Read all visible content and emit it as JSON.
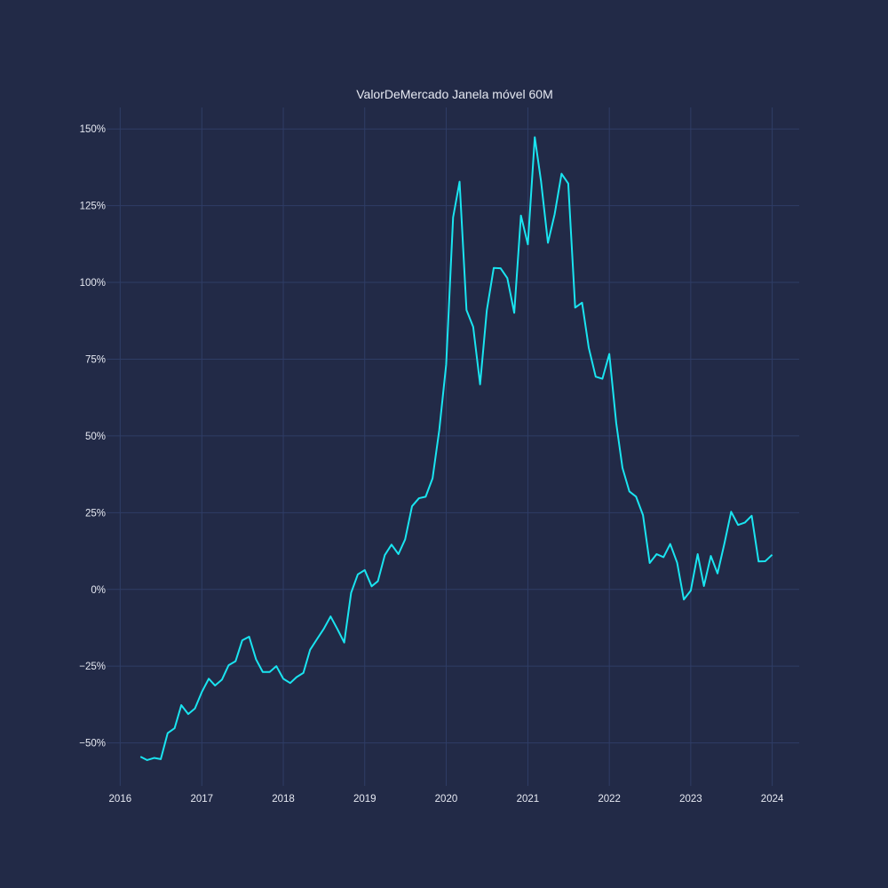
{
  "chart_data": {
    "type": "line",
    "title": "ValorDeMercado Janela móvel 60M",
    "xlabel": "",
    "ylabel": "",
    "x_ticks": [
      "2016",
      "2017",
      "2018",
      "2019",
      "2020",
      "2021",
      "2022",
      "2023",
      "2024"
    ],
    "y_ticks": [
      {
        "value": -50,
        "label": "−50%"
      },
      {
        "value": -25,
        "label": "−25%"
      },
      {
        "value": 0,
        "label": "0%"
      },
      {
        "value": 25,
        "label": "25%"
      },
      {
        "value": 50,
        "label": "50%"
      },
      {
        "value": 75,
        "label": "75%"
      },
      {
        "value": 100,
        "label": "100%"
      },
      {
        "value": 125,
        "label": "125%"
      },
      {
        "value": 150,
        "label": "150%"
      }
    ],
    "xlim": [
      "2015-11-01",
      "2024-05-01"
    ],
    "ylim": [
      -64,
      157
    ],
    "grid": true,
    "colors": {
      "background": "#222a47",
      "line": "#1ae4f0",
      "grid": "#2f3d66",
      "text": "#e6e9f2"
    },
    "series": [
      {
        "x": [
          "2016-04",
          "2016-05",
          "2016-06",
          "2016-07",
          "2016-08",
          "2016-09",
          "2016-10",
          "2016-11",
          "2016-12",
          "2017-01",
          "2017-02",
          "2017-03",
          "2017-04",
          "2017-05",
          "2017-06",
          "2017-07",
          "2017-08",
          "2017-09",
          "2017-10",
          "2017-11",
          "2017-12",
          "2018-01",
          "2018-02",
          "2018-03",
          "2018-04",
          "2018-05",
          "2018-06",
          "2018-07",
          "2018-08",
          "2018-09",
          "2018-10",
          "2018-11",
          "2018-12",
          "2019-01",
          "2019-02",
          "2019-03",
          "2019-04",
          "2019-05",
          "2019-06",
          "2019-07",
          "2019-08",
          "2019-09",
          "2019-10",
          "2019-11",
          "2019-12",
          "2020-01",
          "2020-02",
          "2020-03",
          "2020-04",
          "2020-05",
          "2020-06",
          "2020-07",
          "2020-08",
          "2020-09",
          "2020-10",
          "2020-11",
          "2020-12",
          "2021-01",
          "2021-02",
          "2021-03",
          "2021-04",
          "2021-05",
          "2021-06",
          "2021-07",
          "2021-08",
          "2021-09",
          "2021-10",
          "2021-11",
          "2021-12",
          "2022-01",
          "2022-02",
          "2022-03",
          "2022-04",
          "2022-05",
          "2022-06",
          "2022-07",
          "2022-08",
          "2022-09",
          "2022-10",
          "2022-11",
          "2022-12",
          "2023-01",
          "2023-02",
          "2023-03",
          "2023-04",
          "2023-05",
          "2023-06",
          "2023-07",
          "2023-08",
          "2023-09",
          "2023-10",
          "2023-11",
          "2023-12",
          "2024-01"
        ],
        "values": [
          -54.5,
          -55.6,
          -54.9,
          -55.3,
          -46.8,
          -45.2,
          -37.7,
          -40.6,
          -38.8,
          -33.4,
          -29.1,
          -31.3,
          -29.4,
          -24.7,
          -23.4,
          -16.6,
          -15.4,
          -22.8,
          -26.9,
          -26.9,
          -25.0,
          -29.1,
          -30.5,
          -28.6,
          -27.2,
          -19.7,
          -16.2,
          -12.9,
          -8.8,
          -13.0,
          -17.3,
          -1.1,
          4.9,
          6.3,
          1.0,
          2.7,
          11.2,
          14.6,
          11.5,
          16.3,
          27.1,
          29.7,
          30.2,
          36.2,
          51.9,
          73.3,
          121.2,
          132.8,
          91.0,
          85.5,
          66.8,
          90.9,
          104.7,
          104.6,
          101.4,
          90.1,
          121.8,
          112.4,
          147.3,
          133.0,
          112.9,
          122.2,
          135.4,
          132.2,
          91.8,
          93.4,
          78.7,
          69.3,
          68.6,
          76.7,
          54.2,
          39.6,
          31.9,
          30.2,
          24.2,
          8.6,
          11.5,
          10.5,
          14.8,
          8.7,
          -3.3,
          -0.4,
          11.5,
          1.1,
          10.9,
          5.2,
          15.0,
          25.3,
          21.0,
          21.8,
          24.0,
          9.1,
          9.2,
          11.3
        ]
      }
    ]
  }
}
